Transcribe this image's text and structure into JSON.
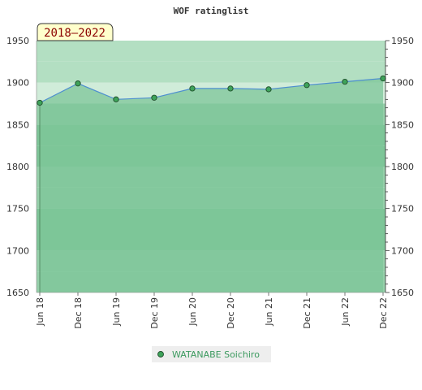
{
  "chart_data": {
    "type": "line",
    "title": "WOF ratinglist",
    "period_label": "2018–2022",
    "x": [
      "Jun 18",
      "Dec 18",
      "Jun 19",
      "Dec 19",
      "Jun 20",
      "Dec 20",
      "Jun 21",
      "Dec 21",
      "Jun 22",
      "Dec 22"
    ],
    "series": [
      {
        "name": "WATANABE Soichiro",
        "values": [
          1876,
          1899,
          1880,
          1882,
          1893,
          1893,
          1892,
          1897,
          1901,
          1905
        ]
      }
    ],
    "ylim": [
      1650,
      1950
    ],
    "yticks": [
      1650,
      1700,
      1750,
      1800,
      1850,
      1900,
      1950
    ],
    "y_axes": [
      "left",
      "right"
    ],
    "legend_position": "bottom-center",
    "grid": false,
    "colors": {
      "line": "#4e8fd0",
      "marker_fill": "#3ea35a",
      "marker_stroke": "#1f4d2b",
      "area_fill": "#7ec598",
      "band_light": "#b3dfc2",
      "band_lighter": "#d0ecd9",
      "band_mid": "#95d0aa",
      "band_dark": "#7ec598",
      "period_box": "#ffffcc",
      "legend_bg": "#eeeeee",
      "legend_text": "#3c9a5f"
    }
  }
}
